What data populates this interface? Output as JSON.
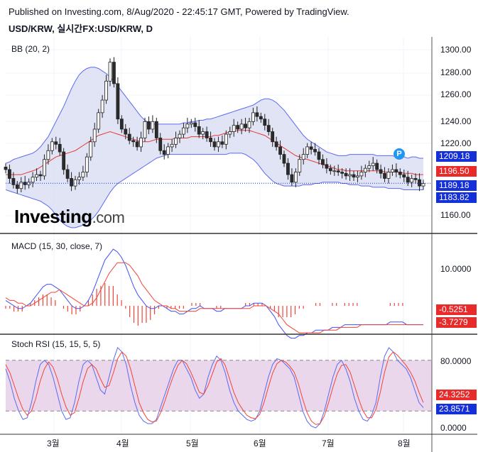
{
  "header": {
    "published": "Published on Investing.com, 8/Aug/2020 - 22:45:17 GMT, Powered by TradingView.",
    "symbol": "USD/KRW, 실시간FX:USD/KRW, D"
  },
  "brand": {
    "logo_main": "Investing",
    "logo_domain": ".com",
    "marker": "P"
  },
  "colors": {
    "up": "#26a69a",
    "down": "#ef5350",
    "candle_up": "#ffffff",
    "candle_down": "#2b2b2b",
    "band": "#5b6af0",
    "band_fill": "#d9ddf2",
    "basis": "#e53935",
    "macd_line": "#3f51f5",
    "signal_line": "#f44336",
    "stoch_k": "#5b6af0",
    "stoch_d": "#f44336",
    "stoch_fill": "#e8d3ea",
    "tag_blue": "#1430d8",
    "tag_red": "#e82a2a"
  },
  "panels": {
    "price": {
      "label": "BB (20, 2)"
    },
    "macd": {
      "label": "MACD (15, 30, close, 7)"
    },
    "stoch": {
      "label": "Stoch RSI (15, 15, 5, 5)"
    }
  },
  "price_axis": [
    "1300.00",
    "1280.00",
    "1260.00",
    "1240.00",
    "1220.00",
    "1160.00"
  ],
  "macd_axis": [
    "10.0000"
  ],
  "stoch_axis": [
    "80.0000",
    "0.0000"
  ],
  "price_tags": [
    {
      "value": "1209.18",
      "color": "blue"
    },
    {
      "value": "1196.50",
      "color": "red"
    },
    {
      "value": "1189.18",
      "color": "blue"
    },
    {
      "value": "1183.82",
      "color": "blue"
    }
  ],
  "macd_tags": [
    {
      "value": "-0.5251",
      "color": "red"
    },
    {
      "value": "-3.7279",
      "color": "red"
    }
  ],
  "stoch_tags": [
    {
      "value": "24.3252",
      "color": "red"
    },
    {
      "value": "23.8571",
      "color": "blue"
    }
  ],
  "x_axis": [
    "3월",
    "4월",
    "5월",
    "6월",
    "7월",
    "8월"
  ],
  "chart_data": [
    {
      "type": "candlestick",
      "title": "USD/KRW, 실시간FX:USD/KRW, D",
      "ylim": [
        1150,
        1305
      ],
      "last_price": 1189.18,
      "bb_upper_last": 1209.18,
      "bb_basis_last": 1196.5,
      "bb_lower_last": 1183.82,
      "close": [
        1200,
        1193,
        1188,
        1185,
        1190,
        1188,
        1190,
        1194,
        1196,
        1195,
        1208,
        1215,
        1222,
        1220,
        1214,
        1200,
        1193,
        1187,
        1192,
        1194,
        1198,
        1210,
        1222,
        1232,
        1245,
        1255,
        1270,
        1285,
        1268,
        1240,
        1232,
        1228,
        1223,
        1222,
        1218,
        1225,
        1238,
        1232,
        1238,
        1225,
        1215,
        1212,
        1218,
        1220,
        1225,
        1228,
        1233,
        1236,
        1237,
        1234,
        1228,
        1230,
        1225,
        1222,
        1218,
        1222,
        1220,
        1228,
        1230,
        1235,
        1232,
        1236,
        1233,
        1238,
        1245,
        1242,
        1240,
        1235,
        1230,
        1222,
        1218,
        1212,
        1205,
        1196,
        1190,
        1198,
        1208,
        1212,
        1218,
        1216,
        1214,
        1208,
        1204,
        1201,
        1199,
        1199,
        1198,
        1197,
        1195,
        1196,
        1194,
        1195,
        1198,
        1201,
        1203,
        1205,
        1200,
        1197,
        1193,
        1198,
        1200,
        1198,
        1196,
        1194,
        1190,
        1193,
        1192,
        1187,
        1189
      ],
      "bb_upper": [
        1205,
        1206,
        1208,
        1209,
        1210,
        1211,
        1212,
        1213,
        1215,
        1218,
        1222,
        1226,
        1232,
        1238,
        1244,
        1250,
        1257,
        1264,
        1270,
        1275,
        1278,
        1280,
        1281,
        1281,
        1280,
        1278,
        1276,
        1273,
        1270,
        1266,
        1262,
        1258,
        1254,
        1250,
        1246,
        1242,
        1239,
        1237,
        1236,
        1236,
        1236,
        1236,
        1236,
        1236,
        1236,
        1236,
        1237,
        1237,
        1238,
        1238,
        1239,
        1239,
        1240,
        1240,
        1241,
        1242,
        1243,
        1244,
        1245,
        1246,
        1247,
        1248,
        1249,
        1250,
        1251,
        1253,
        1255,
        1256,
        1256,
        1255,
        1253,
        1250,
        1247,
        1243,
        1239,
        1235,
        1231,
        1227,
        1224,
        1222,
        1220,
        1218,
        1216,
        1214,
        1213,
        1212,
        1211,
        1211,
        1211,
        1212,
        1212,
        1212,
        1212,
        1212,
        1212,
        1212,
        1211,
        1211,
        1211,
        1211,
        1211,
        1210,
        1210,
        1210,
        1209,
        1210,
        1210,
        1209,
        1209
      ],
      "bb_basis": [
        1196,
        1196,
        1196,
        1196,
        1196,
        1197,
        1198,
        1199,
        1200,
        1202,
        1204,
        1206,
        1208,
        1210,
        1211,
        1212,
        1213,
        1214,
        1215,
        1217,
        1219,
        1221,
        1223,
        1225,
        1227,
        1228,
        1229,
        1230,
        1229,
        1228,
        1227,
        1226,
        1225,
        1224,
        1223,
        1222,
        1222,
        1222,
        1223,
        1224,
        1224,
        1224,
        1224,
        1224,
        1225,
        1225,
        1225,
        1225,
        1226,
        1226,
        1226,
        1226,
        1226,
        1226,
        1227,
        1227,
        1228,
        1229,
        1230,
        1230,
        1231,
        1231,
        1231,
        1231,
        1230,
        1229,
        1228,
        1227,
        1225,
        1223,
        1221,
        1219,
        1217,
        1215,
        1213,
        1211,
        1210,
        1209,
        1208,
        1207,
        1206,
        1205,
        1204,
        1203,
        1202,
        1201,
        1200,
        1200,
        1199,
        1199,
        1199,
        1199,
        1199,
        1199,
        1199,
        1199,
        1199,
        1199,
        1198,
        1198,
        1198,
        1198,
        1198,
        1197,
        1197,
        1197,
        1196,
        1196,
        1196
      ],
      "bb_lower": [
        1184,
        1183,
        1182,
        1181,
        1180,
        1179,
        1178,
        1177,
        1176,
        1175,
        1173,
        1171,
        1168,
        1164,
        1160,
        1157,
        1155,
        1154,
        1154,
        1155,
        1156,
        1158,
        1160,
        1163,
        1167,
        1172,
        1177,
        1182,
        1186,
        1189,
        1191,
        1193,
        1195,
        1197,
        1199,
        1201,
        1203,
        1205,
        1207,
        1209,
        1210,
        1211,
        1212,
        1212,
        1212,
        1212,
        1212,
        1212,
        1212,
        1212,
        1212,
        1212,
        1212,
        1212,
        1212,
        1212,
        1212,
        1212,
        1213,
        1213,
        1213,
        1213,
        1212,
        1210,
        1208,
        1205,
        1201,
        1197,
        1194,
        1191,
        1189,
        1188,
        1187,
        1187,
        1187,
        1187,
        1187,
        1188,
        1188,
        1188,
        1189,
        1189,
        1190,
        1190,
        1190,
        1190,
        1190,
        1189,
        1189,
        1188,
        1188,
        1188,
        1187,
        1187,
        1187,
        1186,
        1186,
        1186,
        1186,
        1185,
        1185,
        1185,
        1185,
        1184,
        1184,
        1184,
        1184,
        1184,
        1184
      ]
    },
    {
      "type": "line",
      "title": "MACD (15, 30, close, 7)",
      "last_values": {
        "histogram": -0.5251,
        "signal": -3.7279
      },
      "macd": [
        2,
        1,
        0,
        -1,
        -1,
        0,
        1,
        3,
        5,
        7,
        8,
        8,
        7,
        6,
        4,
        2,
        0,
        -1,
        -1,
        0,
        2,
        5,
        9,
        13,
        17,
        19,
        21,
        20,
        18,
        15,
        11,
        7,
        4,
        2,
        0,
        -1,
        -1,
        0,
        0,
        -1,
        -2,
        -2,
        -3,
        -3,
        -2,
        -1,
        -1,
        0,
        -1,
        -1,
        -1,
        -2,
        -2,
        -1,
        -1,
        -1,
        -1,
        -1,
        0,
        0,
        1,
        1,
        1,
        0,
        -2,
        -4,
        -7,
        -9,
        -11,
        -12,
        -12,
        -11,
        -11,
        -10,
        -10,
        -9,
        -9,
        -9,
        -9,
        -8,
        -8,
        -8,
        -7,
        -7,
        -7,
        -7,
        -7,
        -7,
        -7,
        -7,
        -7,
        -7,
        -7,
        -6,
        -6,
        -6,
        -6,
        -7,
        -7,
        -7,
        -7,
        -7
      ],
      "signal": [
        3,
        2,
        2,
        1,
        1,
        0,
        0,
        1,
        2,
        3,
        4,
        5,
        5,
        6,
        5,
        4,
        3,
        2,
        1,
        0,
        0,
        1,
        3,
        6,
        9,
        12,
        14,
        16,
        16,
        16,
        15,
        13,
        11,
        8,
        6,
        4,
        2,
        1,
        0,
        0,
        -1,
        -1,
        -2,
        -2,
        -2,
        -2,
        -2,
        -1,
        -1,
        -1,
        -1,
        -1,
        -1,
        -1,
        -1,
        -1,
        -1,
        -1,
        -1,
        -1,
        0,
        0,
        0,
        0,
        -1,
        -2,
        -3,
        -5,
        -7,
        -8,
        -9,
        -10,
        -10,
        -10,
        -10,
        -10,
        -10,
        -9,
        -9,
        -9,
        -9,
        -8,
        -8,
        -8,
        -8,
        -8,
        -7,
        -7,
        -7,
        -7,
        -7,
        -7,
        -7,
        -7,
        -7,
        -7,
        -7,
        -7,
        -7,
        -7,
        -7,
        -7
      ]
    },
    {
      "type": "line",
      "title": "Stoch RSI (15, 15, 5, 5)",
      "ylim": [
        0,
        100
      ],
      "last_values": {
        "d": 24.3252,
        "k": 23.8571
      },
      "k": [
        70,
        55,
        35,
        20,
        10,
        12,
        30,
        55,
        75,
        80,
        75,
        60,
        40,
        20,
        10,
        12,
        30,
        55,
        75,
        80,
        75,
        60,
        45,
        40,
        60,
        80,
        95,
        90,
        75,
        50,
        30,
        15,
        8,
        5,
        5,
        10,
        25,
        40,
        55,
        70,
        80,
        80,
        70,
        60,
        45,
        35,
        40,
        60,
        75,
        85,
        80,
        65,
        45,
        30,
        20,
        15,
        10,
        8,
        10,
        20,
        40,
        60,
        75,
        82,
        80,
        75,
        70,
        60,
        40,
        20,
        8,
        2,
        0,
        5,
        20,
        40,
        60,
        75,
        80,
        70,
        55,
        35,
        20,
        10,
        8,
        15,
        30,
        60,
        85,
        95,
        90,
        80,
        75,
        70,
        60,
        45,
        30,
        24
      ],
      "d": [
        75,
        65,
        50,
        35,
        22,
        15,
        20,
        35,
        55,
        70,
        78,
        72,
        58,
        40,
        25,
        15,
        18,
        35,
        55,
        70,
        75,
        70,
        58,
        48,
        50,
        65,
        82,
        90,
        85,
        70,
        50,
        30,
        18,
        10,
        7,
        8,
        18,
        32,
        48,
        62,
        74,
        80,
        76,
        66,
        54,
        42,
        40,
        50,
        64,
        78,
        82,
        74,
        58,
        42,
        30,
        22,
        15,
        12,
        11,
        16,
        30,
        48,
        65,
        76,
        80,
        78,
        73,
        66,
        52,
        34,
        18,
        8,
        4,
        5,
        14,
        30,
        48,
        64,
        74,
        75,
        66,
        50,
        34,
        20,
        12,
        12,
        22,
        42,
        66,
        84,
        90,
        86,
        80,
        74,
        66,
        56,
        42,
        30
      ]
    }
  ]
}
